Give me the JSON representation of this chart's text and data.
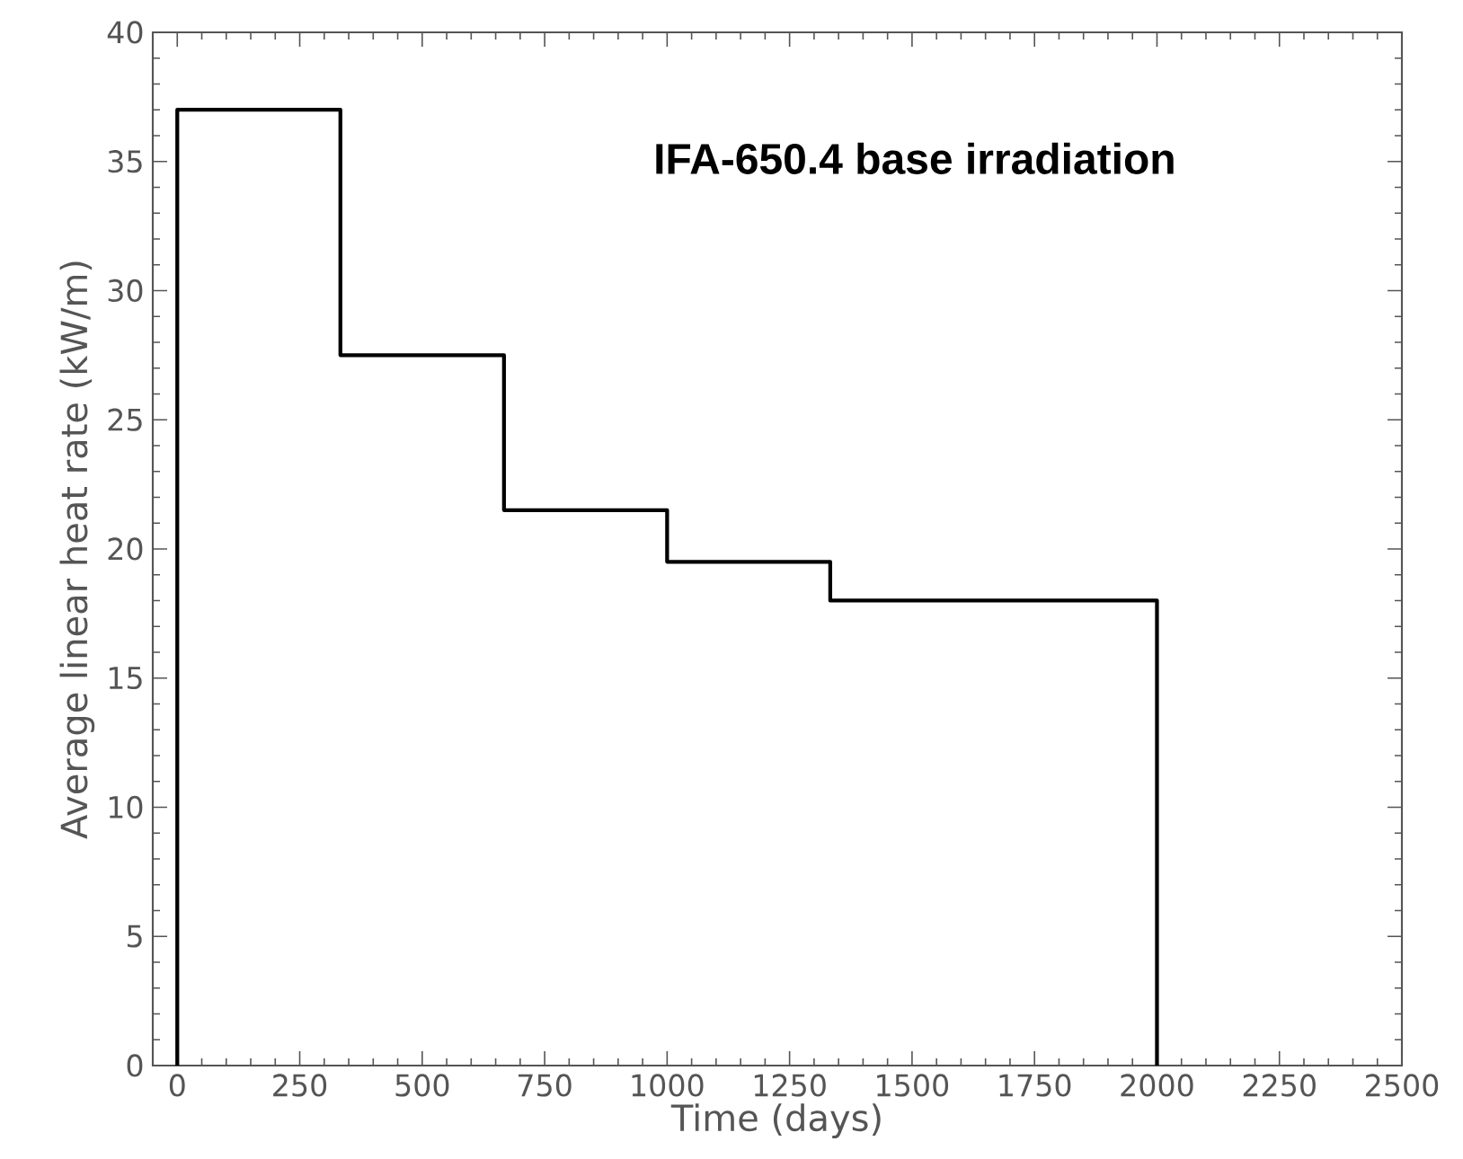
{
  "chart_data": {
    "type": "step",
    "title": "IFA-650.4 base irradiation",
    "xlabel": "Time (days)",
    "ylabel": "Average linear heat rate (kW/m)",
    "x": [
      0,
      0,
      333,
      667,
      1000,
      1333,
      2000
    ],
    "values": [
      0,
      37,
      27.5,
      21.5,
      19.5,
      18,
      0
    ],
    "color": "#000000",
    "xlim": [
      -50,
      2500
    ],
    "ylim": [
      0,
      40
    ],
    "xticks": [
      0,
      250,
      500,
      750,
      1000,
      1250,
      1500,
      1750,
      2000,
      2250,
      2500
    ],
    "yticks": [
      0,
      5,
      10,
      15,
      20,
      25,
      30,
      35,
      40
    ],
    "marker": "none",
    "line_style": "solid"
  }
}
